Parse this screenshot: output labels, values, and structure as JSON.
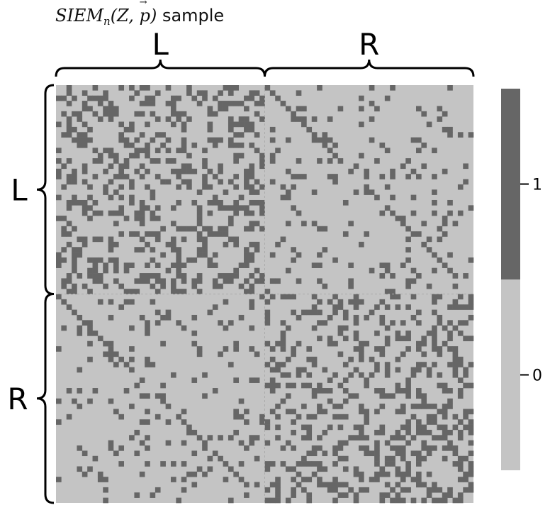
{
  "title": {
    "prefix": "SIEM",
    "subscript": "n",
    "args_open": "(Z, ",
    "args_vec": "p",
    "args_close": ")",
    "suffix": " sample"
  },
  "colors": {
    "zero": "#c4c4c4",
    "one": "#666666",
    "brace": "#000000",
    "block_divider": "#aaaaaa"
  },
  "chart_data": {
    "type": "heatmap",
    "n": 80,
    "groups": [
      "L",
      "R"
    ],
    "top_labels": [
      "L",
      "R"
    ],
    "left_labels": [
      "L",
      "R"
    ],
    "values_legend": [
      0,
      1
    ],
    "colorbar": {
      "ticks": [
        "0",
        "1"
      ]
    },
    "block_density": {
      "LL": 0.35,
      "RR": 0.35,
      "LR": 0.1,
      "RL": 0.1
    },
    "homotopic_diagonal": true,
    "description_symmetric": true
  }
}
